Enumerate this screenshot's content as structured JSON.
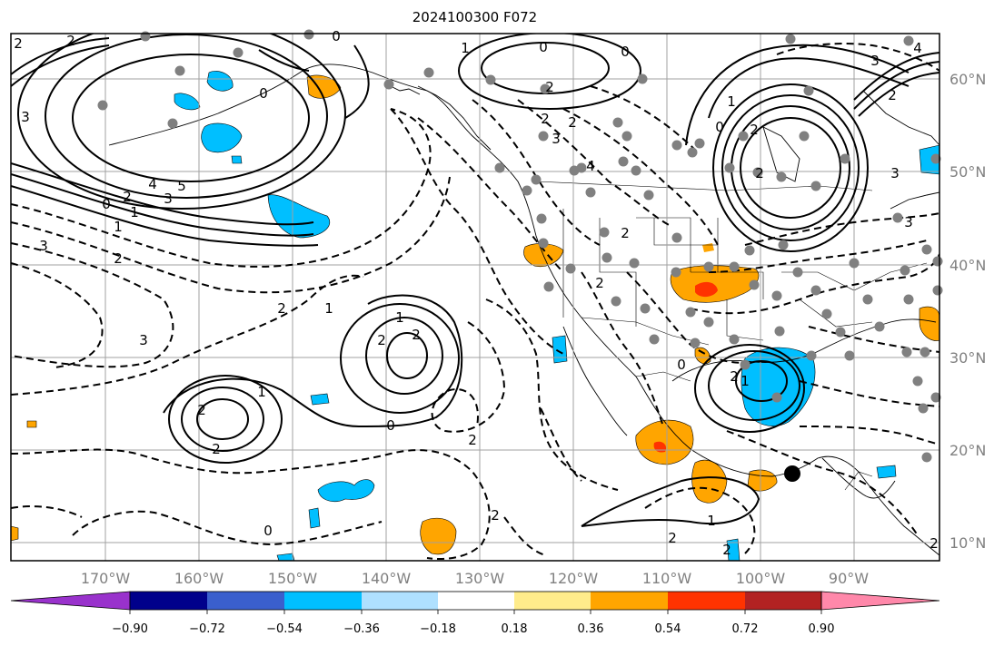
{
  "title": "2024100300 F072",
  "lon_labels": [
    "170°W",
    "160°W",
    "150°W",
    "140°W",
    "130°W",
    "120°W",
    "110°W",
    "100°W",
    "90°W"
  ],
  "lat_labels": [
    "60°N",
    "50°N",
    "40°N",
    "30°N",
    "20°N",
    "10°N"
  ],
  "colorbar": {
    "colors": [
      "#9932cc",
      "#00008b",
      "#3a5fcd",
      "#00bfff",
      "#afe0ff",
      "#ffffff",
      "#ffec8b",
      "#ffa500",
      "#ff3300",
      "#b22222",
      "#ff88aa"
    ],
    "tick_labels": [
      "−0.90",
      "−0.72",
      "−0.54",
      "−0.36",
      "−0.18",
      "0.18",
      "0.36",
      "0.54",
      "0.72",
      "0.90"
    ]
  },
  "contour_labels": [
    "2",
    "0",
    "2",
    "2",
    "3",
    "3",
    "4",
    "5",
    "3",
    "2",
    "1",
    "0",
    "1",
    "2",
    "3",
    "2",
    "1",
    "2",
    "2",
    "1",
    "2",
    "2",
    "2",
    "1",
    "2",
    "0",
    "1",
    "2",
    "0",
    "2",
    "1",
    "0",
    "2",
    "2",
    "0",
    "0",
    "1",
    "0",
    "2",
    "1",
    "2",
    "0",
    "2",
    "2",
    "3",
    "2",
    "3",
    "4",
    "2",
    "2",
    "3",
    "3",
    "4"
  ],
  "colors": {
    "shading_orange": "#ffa500",
    "shading_red": "#ff3300",
    "shading_blue": "#00bfff",
    "station_dot": "#808080",
    "tc_marker": "#000000"
  }
}
